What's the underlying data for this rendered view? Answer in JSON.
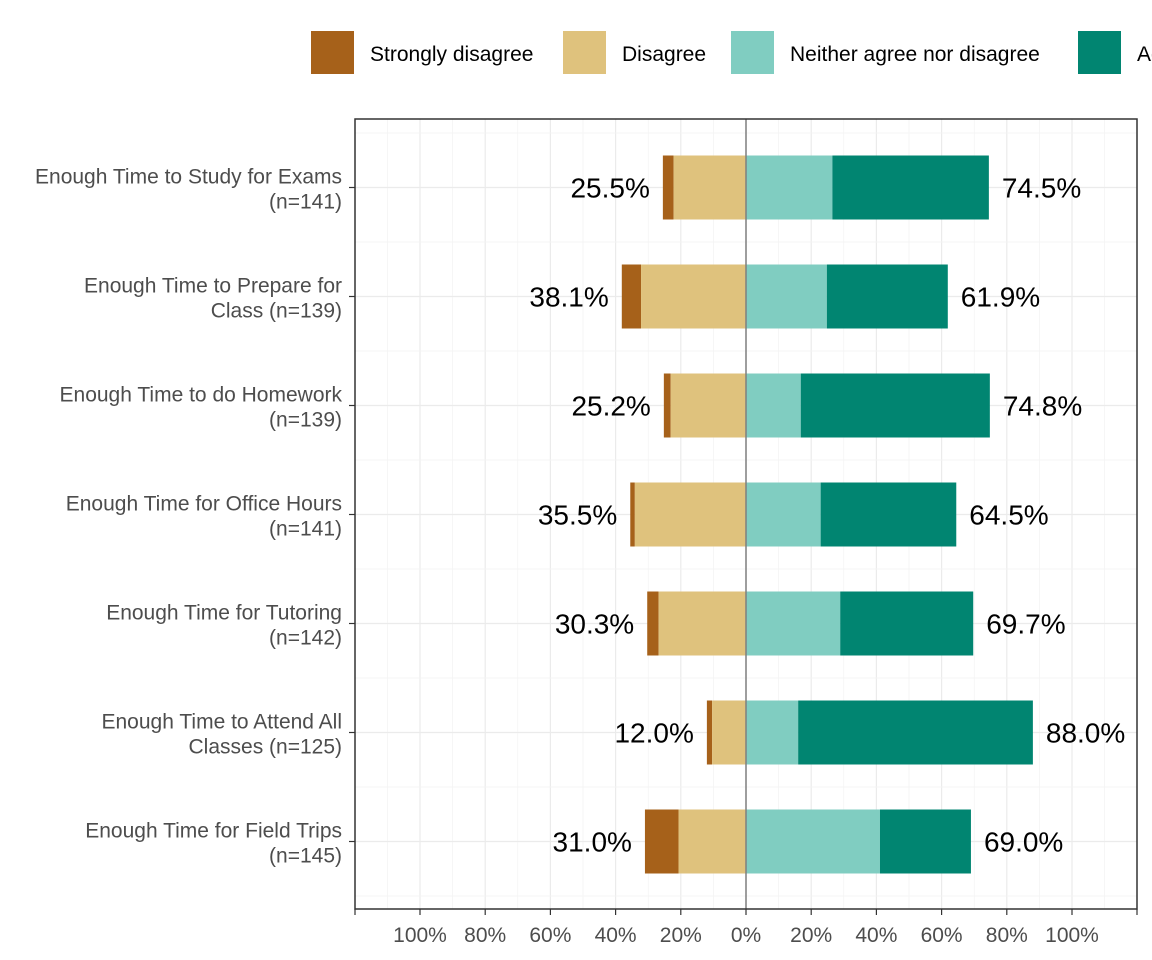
{
  "chart_data": {
    "type": "bar",
    "orientation": "horizontal",
    "stacked": "diverging",
    "title": "",
    "xlabel": "",
    "ylabel": "",
    "xlim": [
      -120,
      120
    ],
    "grid": true,
    "legend_position": "top",
    "legend": [
      {
        "label": "Strongly disagree",
        "color": "#a6611a"
      },
      {
        "label": "Disagree",
        "color": "#dfc27d"
      },
      {
        "label": "Neither agree nor disagree",
        "color": "#80cdc1"
      },
      {
        "label": "Agree",
        "color": "#018571"
      }
    ],
    "x_ticks": [
      {
        "value": -100,
        "label": "100%"
      },
      {
        "value": -80,
        "label": "80%"
      },
      {
        "value": -60,
        "label": "60%"
      },
      {
        "value": -40,
        "label": "40%"
      },
      {
        "value": -20,
        "label": "20%"
      },
      {
        "value": 0,
        "label": "0%"
      },
      {
        "value": 20,
        "label": "20%"
      },
      {
        "value": 40,
        "label": "40%"
      },
      {
        "value": 60,
        "label": "60%"
      },
      {
        "value": 80,
        "label": "80%"
      },
      {
        "value": 100,
        "label": "100%"
      }
    ],
    "categories": [
      {
        "label": [
          "Enough Time to Study for Exams",
          "(n=141)"
        ],
        "strongly_disagree": 3.3,
        "disagree": 22.2,
        "neither": 26.5,
        "agree": 48.0,
        "left_label": "25.5%",
        "right_label": "74.5%"
      },
      {
        "label": [
          "Enough Time to Prepare for",
          "Class (n=139)"
        ],
        "strongly_disagree": 5.9,
        "disagree": 32.2,
        "neither": 24.8,
        "agree": 37.1,
        "left_label": "38.1%",
        "right_label": "61.9%"
      },
      {
        "label": [
          "Enough Time to do Homework",
          "(n=139)"
        ],
        "strongly_disagree": 2.1,
        "disagree": 23.1,
        "neither": 16.8,
        "agree": 58.0,
        "left_label": "25.2%",
        "right_label": "74.8%"
      },
      {
        "label": [
          "Enough Time for Office Hours",
          "(n=141)"
        ],
        "strongly_disagree": 1.4,
        "disagree": 34.1,
        "neither": 22.9,
        "agree": 41.6,
        "left_label": "35.5%",
        "right_label": "64.5%"
      },
      {
        "label": [
          "Enough Time for Tutoring",
          "(n=142)"
        ],
        "strongly_disagree": 3.5,
        "disagree": 26.8,
        "neither": 28.9,
        "agree": 40.8,
        "left_label": "30.3%",
        "right_label": "69.7%"
      },
      {
        "label": [
          "Enough Time to Attend All",
          "Classes (n=125)"
        ],
        "strongly_disagree": 1.6,
        "disagree": 10.4,
        "neither": 16.0,
        "agree": 72.0,
        "left_label": "12.0%",
        "right_label": "88.0%"
      },
      {
        "label": [
          "Enough Time for Field Trips",
          "(n=145)"
        ],
        "strongly_disagree": 10.3,
        "disagree": 20.7,
        "neither": 41.1,
        "agree": 27.9,
        "left_label": "31.0%",
        "right_label": "69.0%"
      }
    ]
  }
}
